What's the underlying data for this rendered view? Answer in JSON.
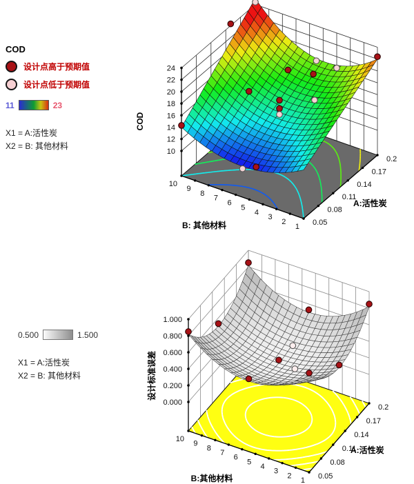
{
  "legend_top": {
    "title": "COD",
    "item_above": "设计点高于预期值",
    "item_below": "设计点低于预期值",
    "scale_min": "11",
    "scale_max": "23",
    "colors": {
      "point_above": "#a81216",
      "point_below": "#f7d0d3",
      "item_text": "#c00000",
      "min_label": "#5b5bd6",
      "max_label": "#e8566e"
    },
    "factors_line1": "X1 = A:活性炭",
    "factors_line2": "X2 = B: 其他材料"
  },
  "legend_bottom": {
    "scale_min": "0.500",
    "scale_max": "1.500",
    "factors_line1": "X1 = A:活性炭",
    "factors_line2": "X2 = B: 其他材料"
  },
  "chart_data": [
    {
      "type": "surface3d",
      "response": "COD",
      "x_axis": {
        "name": "A:活性炭",
        "min": 0.05,
        "max": 0.2,
        "ticks": [
          0.05,
          0.08,
          0.11,
          0.14,
          0.17,
          0.2
        ]
      },
      "y_axis": {
        "name": "B: 其他材料",
        "min": 1,
        "max": 10,
        "ticks": [
          10,
          9,
          8,
          7,
          6,
          5,
          4,
          3,
          2,
          1
        ]
      },
      "z_axis": {
        "name": "COD",
        "ticks": [
          10,
          12,
          14,
          16,
          18,
          20,
          22,
          24
        ]
      },
      "color_scale": {
        "min": 11,
        "max": 23
      },
      "surface_min": 11,
      "surface_max": 25,
      "surface_profile": {
        "edge_A_low": [
          14,
          11,
          14
        ],
        "edge_A_high": [
          22,
          18.5,
          25
        ]
      },
      "contour_levels": [
        12,
        14,
        16,
        18,
        20,
        22
      ],
      "design_points": [
        {
          "A": 0.05,
          "B": 10,
          "COD": 14.3,
          "relation": "above"
        },
        {
          "A": 0.15,
          "B": 10,
          "COD": 24.3,
          "relation": "above"
        },
        {
          "A": 0.2,
          "B": 10,
          "COD": 24.4,
          "relation": "below"
        },
        {
          "A": 0.2,
          "B": 5.5,
          "COD": 18.1,
          "relation": "below"
        },
        {
          "A": 0.2,
          "B": 4,
          "COD": 18.1,
          "relation": "below"
        },
        {
          "A": 0.2,
          "B": 1,
          "COD": 22.4,
          "relation": "above"
        },
        {
          "A": 0.125,
          "B": 7.75,
          "COD": 16.5,
          "relation": "above"
        },
        {
          "A": 0.125,
          "B": 5.5,
          "COD": 16.8,
          "relation": "above"
        },
        {
          "A": 0.125,
          "B": 5.5,
          "COD": 15.4,
          "relation": "above"
        },
        {
          "A": 0.125,
          "B": 5.5,
          "COD": 14.4,
          "relation": "below"
        },
        {
          "A": 0.17,
          "B": 6.5,
          "COD": 17.9,
          "relation": "above"
        },
        {
          "A": 0.18,
          "B": 5,
          "COD": 17.7,
          "relation": "above"
        },
        {
          "A": 0.155,
          "B": 4,
          "COD": 15.9,
          "relation": "below"
        },
        {
          "A": 0.05,
          "B": 5.5,
          "COD": 10.6,
          "relation": "below"
        },
        {
          "A": 0.05,
          "B": 4.5,
          "COD": 11.7,
          "relation": "above"
        }
      ]
    },
    {
      "type": "surface3d",
      "response": "设计标准误差",
      "x_axis": {
        "name": "A:活性炭",
        "min": 0.05,
        "max": 0.2,
        "ticks": [
          0.05,
          0.08,
          0.11,
          0.14,
          0.17,
          0.2
        ]
      },
      "y_axis": {
        "name": "B:其他材料",
        "min": 1,
        "max": 10,
        "ticks": [
          10,
          9,
          8,
          7,
          6,
          5,
          4,
          3,
          2,
          1
        ]
      },
      "z_axis": {
        "name": "设计标准误差",
        "ticks": [
          0,
          0.2,
          0.4,
          0.6,
          0.8,
          1.0
        ]
      },
      "color_scale": {
        "min": 0.5,
        "max": 1.5
      },
      "surface_min": 0.3,
      "surface_max": 0.82,
      "surface_profile": {
        "center": 0.3,
        "edge_mid": 0.5,
        "corner": 0.82
      },
      "contour_levels": [
        0.35,
        0.45,
        0.55,
        0.65,
        0.75
      ],
      "design_points": [
        {
          "A": 0.05,
          "B": 1,
          "stderr": 0.85,
          "type": "filled"
        },
        {
          "A": 0.2,
          "B": 1,
          "stderr": 0.85,
          "type": "filled"
        },
        {
          "A": 0.05,
          "B": 10,
          "stderr": 0.85,
          "type": "filled"
        },
        {
          "A": 0.2,
          "B": 10,
          "stderr": 0.85,
          "type": "filled"
        },
        {
          "A": 0.125,
          "B": 1,
          "stderr": 0.53,
          "type": "filled"
        },
        {
          "A": 0.125,
          "B": 10,
          "stderr": 0.53,
          "type": "filled"
        },
        {
          "A": 0.05,
          "B": 5.5,
          "stderr": 0.53,
          "type": "filled"
        },
        {
          "A": 0.2,
          "B": 5.5,
          "stderr": 0.53,
          "type": "filled"
        },
        {
          "A": 0.125,
          "B": 5.5,
          "stderr": 0.34,
          "type": "filled"
        },
        {
          "A": 0.125,
          "B": 4.3,
          "stderr": 0.3,
          "type": "open"
        },
        {
          "A": 0.16,
          "B": 5.5,
          "stderr": 0.32,
          "type": "open"
        }
      ]
    }
  ]
}
